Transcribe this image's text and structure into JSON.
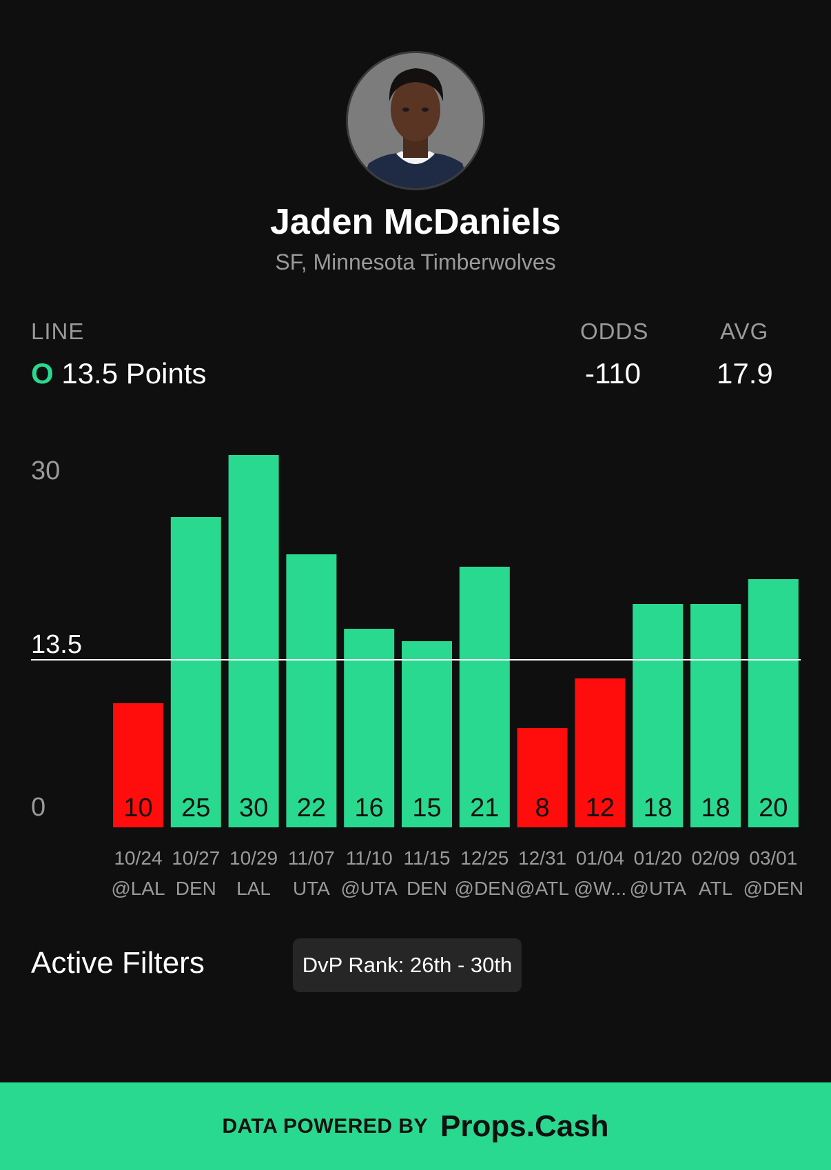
{
  "player": {
    "name": "Jaden McDaniels",
    "position_team": "SF, Minnesota Timberwolves"
  },
  "stats": {
    "line_label": "LINE",
    "line_side": "O",
    "line_value": "13.5 Points",
    "odds_label": "ODDS",
    "odds_value": "-110",
    "avg_label": "AVG",
    "avg_value": "17.9"
  },
  "colors": {
    "over": "#29d98f",
    "under": "#ff0d0d",
    "background": "#0f0f0f"
  },
  "chart_data": {
    "type": "bar",
    "y_ticks": [
      "30",
      "13.5",
      "0"
    ],
    "threshold": 13.5,
    "ylim": [
      0,
      30
    ],
    "categories": [
      {
        "date": "10/24",
        "opponent": "@LAL"
      },
      {
        "date": "10/27",
        "opponent": "DEN"
      },
      {
        "date": "10/29",
        "opponent": "LAL"
      },
      {
        "date": "11/07",
        "opponent": "UTA"
      },
      {
        "date": "11/10",
        "opponent": "@UTA"
      },
      {
        "date": "11/15",
        "opponent": "DEN"
      },
      {
        "date": "12/25",
        "opponent": "@DEN"
      },
      {
        "date": "12/31",
        "opponent": "@ATL"
      },
      {
        "date": "01/04",
        "opponent": "@W..."
      },
      {
        "date": "01/20",
        "opponent": "@UTA"
      },
      {
        "date": "02/09",
        "opponent": "ATL"
      },
      {
        "date": "03/01",
        "opponent": "@DEN"
      }
    ],
    "values": [
      10,
      25,
      30,
      22,
      16,
      15,
      21,
      8,
      12,
      18,
      18,
      20
    ]
  },
  "filters": {
    "title": "Active Filters",
    "chips": [
      "DvP Rank: 26th - 30th"
    ]
  },
  "footer": {
    "label": "DATA POWERED BY",
    "brand": "Props.Cash"
  }
}
